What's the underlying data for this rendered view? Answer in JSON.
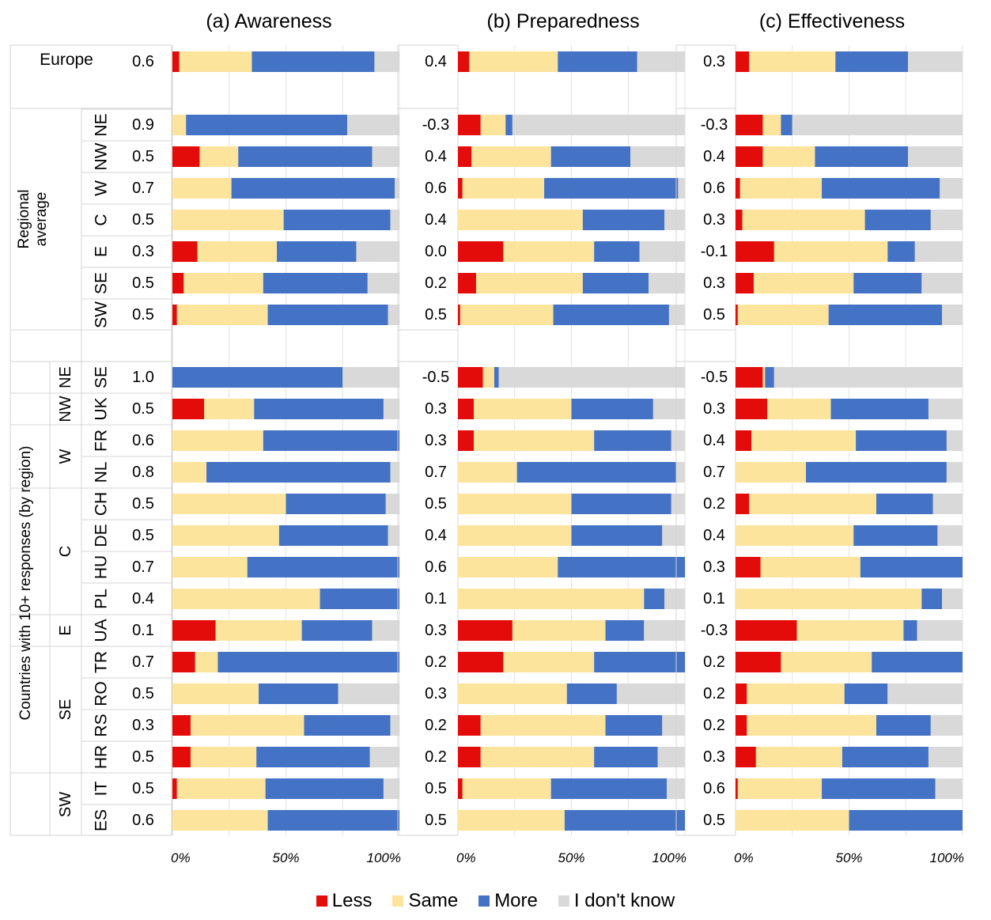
{
  "chart_data": {
    "type": "bar",
    "stacked": "percent",
    "colors": {
      "Less": "#e40b0b",
      "Same": "#fde49c",
      "More": "#4472c4",
      "I don't know": "#d9d9d9"
    },
    "legend": [
      "Less",
      "Same",
      "More",
      "I don't know"
    ],
    "legend_position": "bottom-center",
    "xticks": [
      "0%",
      "50%",
      "100%"
    ],
    "xlim": [
      0,
      100
    ],
    "grid": true,
    "group_labels": {
      "europe": "Europe",
      "regional": "Regional average",
      "countries": "Countries with 10+ responses (by region)"
    },
    "rows": [
      {
        "label": "",
        "group": "Europe",
        "section": "europe"
      },
      {
        "label": "NE",
        "section": "regional"
      },
      {
        "label": "NW",
        "section": "regional"
      },
      {
        "label": "W",
        "section": "regional"
      },
      {
        "label": "C",
        "section": "regional"
      },
      {
        "label": "E",
        "section": "regional"
      },
      {
        "label": "SE",
        "section": "regional"
      },
      {
        "label": "SW",
        "section": "regional"
      },
      {
        "label": "SE",
        "region": "NE",
        "section": "countries"
      },
      {
        "label": "UK",
        "region": "NW",
        "section": "countries"
      },
      {
        "label": "FR",
        "region": "W",
        "section": "countries"
      },
      {
        "label": "NL",
        "region": "W",
        "section": "countries"
      },
      {
        "label": "CH",
        "region": "C",
        "section": "countries"
      },
      {
        "label": "DE",
        "region": "C",
        "section": "countries"
      },
      {
        "label": "HU",
        "region": "C",
        "section": "countries"
      },
      {
        "label": "PL",
        "region": "C",
        "section": "countries"
      },
      {
        "label": "UA",
        "region": "E",
        "section": "countries"
      },
      {
        "label": "TR",
        "region": "SE",
        "section": "countries"
      },
      {
        "label": "RO",
        "region": "SE",
        "section": "countries"
      },
      {
        "label": "RS",
        "region": "SE",
        "section": "countries"
      },
      {
        "label": "HR",
        "region": "SE",
        "section": "countries"
      },
      {
        "label": "IT",
        "region": "SW",
        "section": "countries"
      },
      {
        "label": "ES",
        "region": "SW",
        "section": "countries"
      }
    ],
    "country_region_groups": [
      {
        "label": "NE",
        "rows": [
          8,
          8
        ]
      },
      {
        "label": "NW",
        "rows": [
          9,
          9
        ]
      },
      {
        "label": "W",
        "rows": [
          10,
          11
        ]
      },
      {
        "label": "C",
        "rows": [
          12,
          15
        ]
      },
      {
        "label": "E",
        "rows": [
          16,
          16
        ]
      },
      {
        "label": "SE",
        "rows": [
          17,
          20
        ]
      },
      {
        "label": "SW",
        "rows": [
          21,
          22
        ]
      }
    ],
    "panels": [
      {
        "title": "(a) Awareness",
        "scores": [
          "0.6",
          "0.9",
          "0.5",
          "0.7",
          "0.5",
          "0.3",
          "0.5",
          "0.5",
          "1.0",
          "0.5",
          "0.6",
          "0.8",
          "0.5",
          "0.5",
          "0.7",
          "0.4",
          "0.1",
          "0.7",
          "0.5",
          "0.3",
          "0.5",
          "0.5",
          "0.6"
        ],
        "values": [
          [
            3,
            32,
            54,
            11
          ],
          [
            0,
            6,
            71,
            23
          ],
          [
            12,
            17,
            59,
            12
          ],
          [
            0,
            26,
            72,
            2
          ],
          [
            0,
            49,
            47,
            4
          ],
          [
            11,
            35,
            35,
            19
          ],
          [
            5,
            35,
            46,
            14
          ],
          [
            2,
            40,
            53,
            5
          ],
          [
            0,
            0,
            75,
            25
          ],
          [
            14,
            22,
            57,
            7
          ],
          [
            0,
            40,
            60,
            0
          ],
          [
            0,
            15,
            81,
            4
          ],
          [
            0,
            50,
            44,
            6
          ],
          [
            0,
            47,
            48,
            5
          ],
          [
            0,
            33,
            67,
            0
          ],
          [
            0,
            65,
            35,
            0
          ],
          [
            19,
            38,
            31,
            12
          ],
          [
            10,
            10,
            80,
            0
          ],
          [
            0,
            38,
            35,
            27
          ],
          [
            8,
            50,
            38,
            4
          ],
          [
            8,
            29,
            50,
            13
          ],
          [
            2,
            39,
            52,
            7
          ],
          [
            0,
            42,
            58,
            0
          ]
        ]
      },
      {
        "title": "(b) Preparedness",
        "scores": [
          "0.4",
          "-0.3",
          "0.4",
          "0.6",
          "0.4",
          "0.0",
          "0.2",
          "0.5",
          "-0.5",
          "0.3",
          "0.3",
          "0.7",
          "0.5",
          "0.4",
          "0.6",
          "0.1",
          "0.3",
          "0.2",
          "0.3",
          "0.2",
          "0.2",
          "0.5",
          "0.5"
        ],
        "values": [
          [
            5,
            39,
            35,
            21
          ],
          [
            10,
            11,
            3,
            76
          ],
          [
            6,
            35,
            35,
            24
          ],
          [
            2,
            36,
            59,
            3
          ],
          [
            0,
            55,
            36,
            9
          ],
          [
            20,
            40,
            20,
            20
          ],
          [
            8,
            47,
            29,
            16
          ],
          [
            1,
            41,
            51,
            7
          ],
          [
            11,
            5,
            2,
            82
          ],
          [
            7,
            43,
            36,
            14
          ],
          [
            7,
            53,
            34,
            6
          ],
          [
            0,
            26,
            70,
            4
          ],
          [
            0,
            50,
            44,
            6
          ],
          [
            0,
            50,
            40,
            10
          ],
          [
            0,
            44,
            56,
            0
          ],
          [
            0,
            82,
            9,
            9
          ],
          [
            24,
            41,
            17,
            18
          ],
          [
            20,
            40,
            40,
            0
          ],
          [
            0,
            48,
            22,
            30
          ],
          [
            10,
            55,
            25,
            10
          ],
          [
            10,
            50,
            28,
            12
          ],
          [
            2,
            39,
            51,
            8
          ],
          [
            0,
            47,
            53,
            0
          ]
        ]
      },
      {
        "title": "(c) Effectiveness",
        "scores": [
          "0.3",
          "-0.3",
          "0.4",
          "0.6",
          "0.3",
          "-0.1",
          "0.3",
          "0.5",
          "-0.5",
          "0.3",
          "0.4",
          "0.7",
          "0.2",
          "0.4",
          "0.3",
          "0.1",
          "-0.3",
          "0.2",
          "0.2",
          "0.2",
          "0.3",
          "0.6",
          "0.5"
        ],
        "values": [
          [
            6,
            38,
            32,
            24
          ],
          [
            12,
            8,
            5,
            75
          ],
          [
            12,
            23,
            41,
            24
          ],
          [
            2,
            36,
            52,
            10
          ],
          [
            3,
            54,
            29,
            14
          ],
          [
            17,
            50,
            12,
            21
          ],
          [
            8,
            44,
            30,
            18
          ],
          [
            1,
            40,
            50,
            9
          ],
          [
            12,
            1,
            4,
            83
          ],
          [
            14,
            28,
            43,
            15
          ],
          [
            7,
            46,
            40,
            7
          ],
          [
            0,
            31,
            62,
            7
          ],
          [
            6,
            56,
            25,
            13
          ],
          [
            0,
            52,
            37,
            11
          ],
          [
            11,
            44,
            45,
            0
          ],
          [
            0,
            82,
            9,
            9
          ],
          [
            27,
            47,
            6,
            20
          ],
          [
            20,
            40,
            40,
            0
          ],
          [
            5,
            43,
            19,
            33
          ],
          [
            5,
            57,
            24,
            14
          ],
          [
            9,
            38,
            38,
            15
          ],
          [
            1,
            37,
            50,
            12
          ],
          [
            0,
            50,
            50,
            0
          ]
        ]
      }
    ]
  }
}
